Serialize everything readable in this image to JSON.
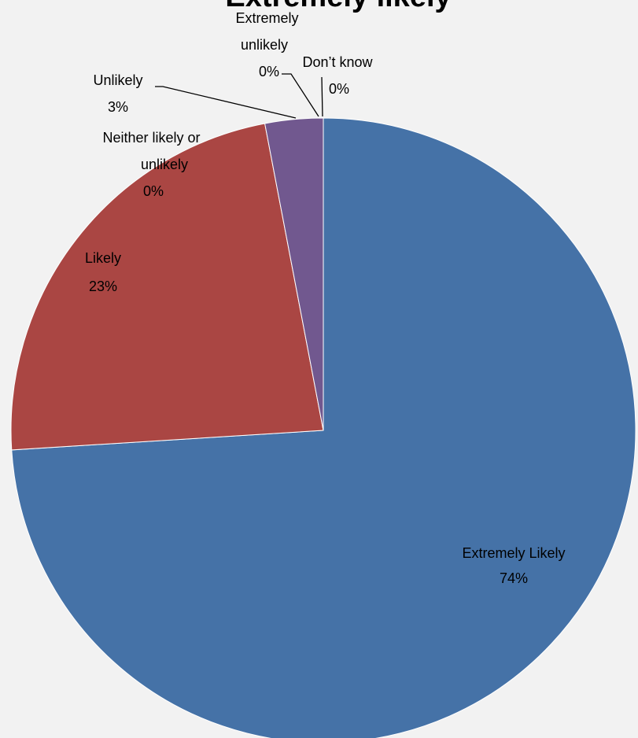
{
  "chart_data": {
    "type": "pie",
    "title": "Extremely likely",
    "start_angle_deg": 0,
    "direction": "clockwise",
    "slices": [
      {
        "key": "extremely-likely",
        "label": "Extremely Likely",
        "percent_label": "74%",
        "value": 74,
        "color": "#4572a7"
      },
      {
        "key": "likely",
        "label": "Likely",
        "percent_label": "23%",
        "value": 23,
        "color": "#aa4643"
      },
      {
        "key": "neither",
        "label": "Neither likely or unlikely",
        "percent_label": "0%",
        "value": 0,
        "color": "#89a54e"
      },
      {
        "key": "unlikely",
        "label": "Unlikely",
        "percent_label": "3%",
        "value": 3,
        "color": "#71588f"
      },
      {
        "key": "extremely-unlikely",
        "label": "Extremely unlikely",
        "percent_label": "0%",
        "value": 0,
        "color": "#4198af"
      },
      {
        "key": "dont-know",
        "label": "Don’t know",
        "percent_label": "0%",
        "value": 0,
        "color": "#db843d"
      }
    ]
  }
}
